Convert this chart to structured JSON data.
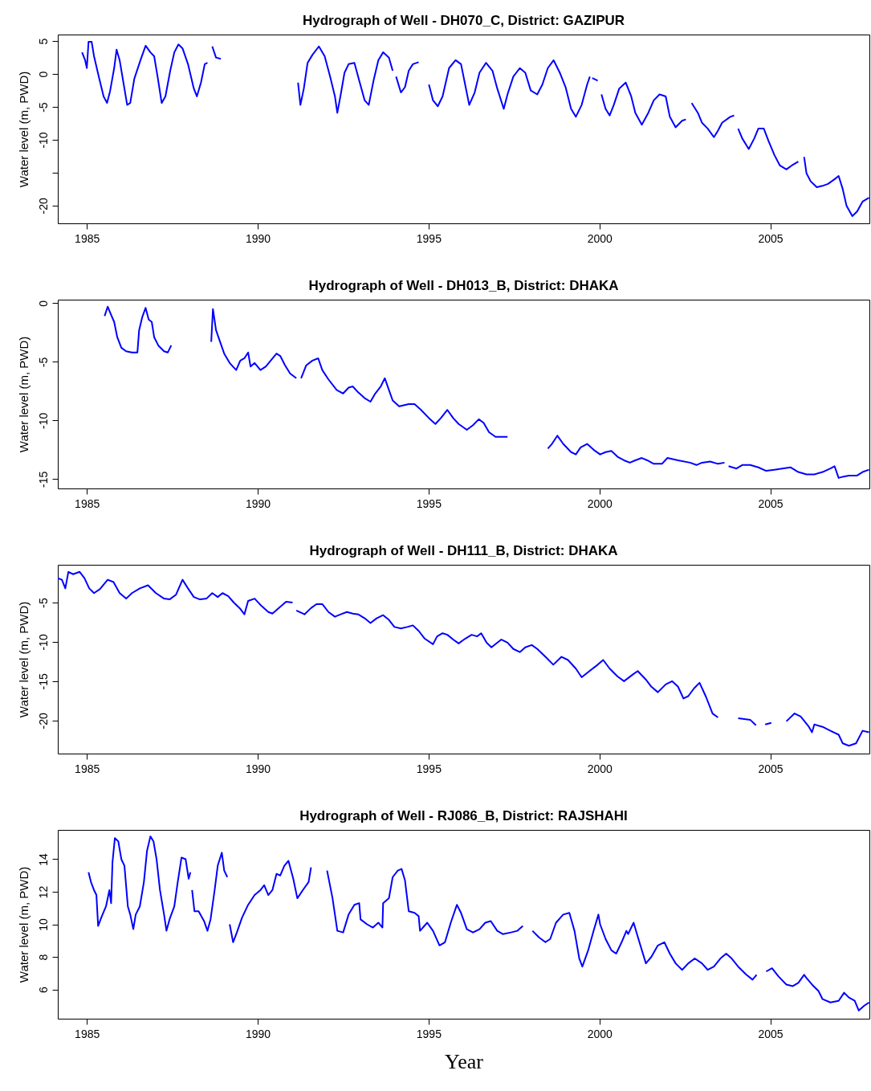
{
  "chart_data": [
    {
      "type": "line",
      "title": "Hydrograph of Well - DH070_C, District: GAZIPUR",
      "ylabel": "Water level (m, PWD)",
      "xlim": [
        1984.15,
        2007.9
      ],
      "xticks": [
        1985,
        1990,
        1995,
        2000,
        2005
      ],
      "ylim": [
        -22.7,
        6.0
      ],
      "yticks": [
        5,
        0,
        -5,
        -10,
        {
          "value": -15,
          "label": null
        },
        -20
      ],
      "x": [
        1984.86,
        1984.95,
        1985.0,
        1985.05,
        1985.14,
        1985.21,
        1985.35,
        1985.49,
        1985.59,
        1985.68,
        1985.8,
        1985.87,
        1985.96,
        1986.08,
        1986.18,
        1986.27,
        1986.39,
        1986.57,
        1986.72,
        1986.86,
        1986.97,
        1987.07,
        1987.19,
        1987.3,
        1987.44,
        1987.56,
        1987.68,
        1987.8,
        1987.96,
        1988.13,
        1988.22,
        1988.34,
        1988.45,
        1988.53,
        1988.6,
        1988.67,
        1988.78,
        1988.92,
        1990.0,
        1991.18,
        1991.25,
        1991.35,
        1991.46,
        1991.6,
        1991.79,
        1991.96,
        1992.12,
        1992.26,
        1992.33,
        1992.43,
        1992.54,
        1992.66,
        1992.83,
        1992.97,
        1993.13,
        1993.25,
        1993.39,
        1993.53,
        1993.67,
        1993.84,
        1993.95,
        1994.0,
        1994.05,
        1994.19,
        1994.31,
        1994.42,
        1994.54,
        1994.71,
        1994.86,
        1995.01,
        1995.13,
        1995.27,
        1995.41,
        1995.6,
        1995.79,
        1995.95,
        1996.07,
        1996.19,
        1996.35,
        1996.49,
        1996.68,
        1996.87,
        1997.01,
        1997.2,
        1997.31,
        1997.48,
        1997.67,
        1997.83,
        1997.99,
        1998.18,
        1998.33,
        1998.49,
        1998.66,
        1998.84,
        1999.01,
        1999.17,
        1999.31,
        1999.48,
        1999.64,
        1999.72,
        1999.75,
        1999.79,
        1999.95,
        2000.0,
        2000.06,
        2000.18,
        2000.3,
        2000.42,
        2000.58,
        2000.77,
        2000.93,
        2001.05,
        2001.24,
        2001.43,
        2001.59,
        2001.76,
        2001.94,
        2002.06,
        2002.23,
        2002.42,
        2002.53,
        2002.62,
        2002.7,
        2002.88,
        2003.0,
        2003.17,
        2003.35,
        2003.47,
        2003.59,
        2003.83,
        2003.94,
        2004.0,
        2004.06,
        2004.18,
        2004.37,
        2004.53,
        2004.65,
        2004.81,
        2004.95,
        2005.12,
        2005.28,
        2005.47,
        2005.63,
        2005.82,
        2005.9,
        2005.99,
        2006.06,
        2006.18,
        2006.36,
        2006.53,
        2006.69,
        2006.88,
        2007.0,
        2007.12,
        2007.23,
        2007.4,
        2007.54,
        2007.7,
        2007.89
      ],
      "series": [
        {
          "color": "#0000ff",
          "values": [
            3.3,
            2.1,
            0.9,
            4.9,
            4.9,
            2.7,
            -0.4,
            -3.4,
            -4.4,
            -2.6,
            0.9,
            3.7,
            2.1,
            -1.6,
            -4.7,
            -4.4,
            -0.7,
            2.1,
            4.3,
            3.3,
            2.7,
            -0.4,
            -4.4,
            -3.4,
            0.5,
            3.3,
            4.5,
            3.9,
            1.5,
            -2.2,
            -3.4,
            -1.3,
            1.5,
            1.7,
            null,
            4.2,
            2.5,
            2.3,
            null,
            -1.3,
            -4.7,
            -2.2,
            1.7,
            2.9,
            4.2,
            2.7,
            -0.4,
            -3.4,
            -5.9,
            -3.1,
            0.2,
            1.5,
            1.7,
            -1.0,
            -4.0,
            -4.7,
            -1.0,
            2.1,
            3.3,
            2.5,
            0.5,
            null,
            -0.4,
            -2.8,
            -2.0,
            0.5,
            1.5,
            1.8,
            null,
            -1.6,
            -4.0,
            -4.9,
            -3.4,
            0.9,
            2.1,
            1.5,
            -1.6,
            -4.7,
            -2.8,
            0.2,
            1.7,
            0.5,
            -2.2,
            -5.3,
            -3.1,
            -0.4,
            0.9,
            0.2,
            -2.5,
            -3.1,
            -1.6,
            0.9,
            2.1,
            0.2,
            -2.0,
            -5.3,
            -6.5,
            -4.7,
            -1.6,
            -0.4,
            null,
            -0.6,
            -1.0,
            null,
            -3.1,
            -5.3,
            -6.3,
            -4.7,
            -2.2,
            -1.3,
            -3.4,
            -5.9,
            -7.7,
            -5.9,
            -4.0,
            -3.1,
            -3.4,
            -6.5,
            -8.1,
            -7.1,
            -6.9,
            null,
            -4.4,
            -5.9,
            -7.4,
            -8.3,
            -9.6,
            -8.6,
            -7.4,
            -6.5,
            -6.3,
            null,
            -8.3,
            -9.8,
            -11.4,
            -9.8,
            -8.3,
            -8.3,
            -10.2,
            -12.3,
            -13.9,
            -14.5,
            -13.9,
            -13.3,
            null,
            -12.6,
            -15.1,
            -16.3,
            -17.2,
            -17.0,
            -16.7,
            -16.0,
            -15.5,
            -17.5,
            -20.0,
            -21.6,
            -20.9,
            -19.4,
            -18.8
          ]
        }
      ]
    },
    {
      "type": "line",
      "title": "Hydrograph of Well - DH013_B, District: DHAKA",
      "ylabel": "Water level (m, PWD)",
      "xlim": [
        1984.15,
        2007.9
      ],
      "xticks": [
        1985,
        1990,
        1995,
        2000,
        2005
      ],
      "ylim": [
        -15.8,
        0.3
      ],
      "yticks": [
        0,
        -5,
        -10,
        -15
      ],
      "x": [
        1985.52,
        1985.61,
        1985.71,
        1985.8,
        1985.89,
        1986.01,
        1986.15,
        1986.32,
        1986.48,
        1986.53,
        1986.62,
        1986.72,
        1986.81,
        1986.9,
        1986.97,
        1987.09,
        1987.26,
        1987.37,
        1987.47,
        1988.0,
        1988.64,
        1988.69,
        1988.78,
        1988.9,
        1989.02,
        1989.18,
        1989.37,
        1989.49,
        1989.61,
        1989.72,
        1989.79,
        1989.91,
        1990.08,
        1990.24,
        1990.38,
        1990.55,
        1990.66,
        1990.8,
        1990.95,
        1991.13,
        1991.2,
        1991.27,
        1991.42,
        1991.6,
        1991.77,
        1991.89,
        1992.07,
        1992.31,
        1992.5,
        1992.66,
        1992.78,
        1992.94,
        1993.13,
        1993.3,
        1993.44,
        1993.6,
        1993.72,
        1993.84,
        1993.95,
        1994.14,
        1994.42,
        1994.59,
        1994.78,
        1995.01,
        1995.2,
        1995.36,
        1995.55,
        1995.72,
        1995.88,
        1996.12,
        1996.3,
        1996.47,
        1996.61,
        1996.77,
        1996.96,
        1997.31,
        1998.0,
        1998.49,
        1998.61,
        1998.77,
        1998.94,
        1999.17,
        1999.31,
        1999.45,
        1999.64,
        1999.83,
        2000.02,
        2000.18,
        2000.35,
        2000.53,
        2000.72,
        2000.89,
        2001.05,
        2001.24,
        2001.4,
        2001.59,
        2001.83,
        2001.99,
        2002.3,
        2002.65,
        2002.84,
        2003.0,
        2003.24,
        2003.47,
        2003.66,
        2003.72,
        2003.78,
        2004.01,
        2004.18,
        2004.41,
        2004.65,
        2004.88,
        2005.12,
        2005.35,
        2005.59,
        2005.82,
        2006.06,
        2006.29,
        2006.53,
        2006.76,
        2006.88,
        2007.0,
        2007.12,
        2007.3,
        2007.54,
        2007.7,
        2007.89
      ],
      "series": [
        {
          "color": "#0000ff",
          "values": [
            -1.1,
            -0.3,
            -1.0,
            -1.6,
            -2.9,
            -3.8,
            -4.1,
            -4.2,
            -4.2,
            -2.3,
            -1.2,
            -0.4,
            -1.4,
            -1.6,
            -2.9,
            -3.6,
            -4.1,
            -4.2,
            -3.6,
            null,
            -3.3,
            -0.5,
            -2.3,
            -3.3,
            -4.3,
            -5.1,
            -5.7,
            -4.9,
            -4.7,
            -4.2,
            -5.4,
            -5.1,
            -5.7,
            -5.4,
            -4.9,
            -4.3,
            -4.5,
            -5.3,
            -6.0,
            -6.4,
            null,
            -6.4,
            -5.3,
            -4.9,
            -4.7,
            -5.7,
            -6.5,
            -7.4,
            -7.7,
            -7.2,
            -7.1,
            -7.6,
            -8.1,
            -8.4,
            -7.7,
            -7.1,
            -6.4,
            -7.4,
            -8.3,
            -8.8,
            -8.6,
            -8.6,
            -9.1,
            -9.8,
            -10.3,
            -9.8,
            -9.1,
            -9.8,
            -10.3,
            -10.8,
            -10.4,
            -9.9,
            -10.2,
            -11.0,
            -11.4,
            -11.4,
            null,
            -12.4,
            -12.0,
            -11.3,
            -12.0,
            -12.7,
            -12.9,
            -12.3,
            -12.0,
            -12.5,
            -12.9,
            -12.7,
            -12.6,
            -13.1,
            -13.4,
            -13.6,
            -13.4,
            -13.2,
            -13.4,
            -13.7,
            -13.7,
            -13.2,
            -13.4,
            -13.6,
            -13.8,
            -13.6,
            -13.5,
            -13.7,
            -13.6,
            null,
            -13.9,
            -14.1,
            -13.8,
            -13.8,
            -14.0,
            -14.3,
            -14.2,
            -14.1,
            -14.0,
            -14.4,
            -14.6,
            -14.6,
            -14.4,
            -14.1,
            -13.9,
            -14.9,
            -14.8,
            -14.7,
            -14.7,
            -14.4,
            -14.2
          ]
        }
      ]
    },
    {
      "type": "line",
      "title": "Hydrograph of Well - DH111_B, District: DHAKA",
      "ylabel": "Water level (m, PWD)",
      "xlim": [
        1984.15,
        2007.9
      ],
      "xticks": [
        1985,
        1990,
        1995,
        2000,
        2005
      ],
      "ylim": [
        -24.2,
        -0.2
      ],
      "yticks": [
        -5,
        -10,
        -15,
        -20
      ],
      "x": [
        1984.15,
        1984.27,
        1984.37,
        1984.46,
        1984.6,
        1984.79,
        1984.93,
        1985.07,
        1985.21,
        1985.38,
        1985.61,
        1985.78,
        1985.96,
        1986.15,
        1986.32,
        1986.55,
        1986.79,
        1987.02,
        1987.26,
        1987.42,
        1987.61,
        1987.8,
        1987.96,
        1988.13,
        1988.31,
        1988.5,
        1988.67,
        1988.83,
        1988.97,
        1989.14,
        1989.3,
        1989.49,
        1989.61,
        1989.72,
        1989.91,
        1990.08,
        1990.31,
        1990.43,
        1990.62,
        1990.83,
        1991.02,
        1991.08,
        1991.13,
        1991.37,
        1991.56,
        1991.72,
        1991.89,
        1992.07,
        1992.26,
        1992.43,
        1992.61,
        1992.78,
        1992.94,
        1993.13,
        1993.3,
        1993.48,
        1993.67,
        1993.84,
        1994.0,
        1994.19,
        1994.38,
        1994.54,
        1994.71,
        1994.89,
        1995.13,
        1995.25,
        1995.41,
        1995.55,
        1995.72,
        1995.88,
        1996.07,
        1996.26,
        1996.42,
        1996.54,
        1996.7,
        1996.84,
        1997.01,
        1997.13,
        1997.31,
        1997.48,
        1997.67,
        1997.83,
        1998.02,
        1998.18,
        1998.42,
        1998.65,
        1998.89,
        1999.08,
        1999.31,
        1999.48,
        1999.71,
        1999.95,
        2000.11,
        2000.3,
        2000.53,
        2000.72,
        2000.96,
        2001.12,
        2001.36,
        2001.52,
        2001.71,
        2001.94,
        2002.13,
        2002.3,
        2002.46,
        2002.6,
        2002.77,
        2002.93,
        2003.12,
        2003.31,
        2003.47,
        2003.8,
        2004.06,
        2004.41,
        2004.58,
        2004.72,
        2004.85,
        2005.03,
        2005.2,
        2005.47,
        2005.71,
        2005.89,
        2006.13,
        2006.22,
        2006.29,
        2006.53,
        2006.76,
        2007.0,
        2007.12,
        2007.3,
        2007.51,
        2007.7,
        2007.89
      ],
      "series": [
        {
          "color": "#0000ff",
          "values": [
            -1.9,
            -2.1,
            -3.2,
            -1.1,
            -1.4,
            -1.1,
            -1.9,
            -3.2,
            -3.8,
            -3.3,
            -2.1,
            -2.4,
            -3.8,
            -4.5,
            -3.8,
            -3.2,
            -2.8,
            -3.8,
            -4.5,
            -4.6,
            -4.0,
            -2.1,
            -3.2,
            -4.3,
            -4.6,
            -4.5,
            -3.8,
            -4.3,
            -3.8,
            -4.2,
            -5.0,
            -5.8,
            -6.5,
            -4.8,
            -4.5,
            -5.3,
            -6.2,
            -6.4,
            -5.7,
            -4.9,
            -5.0,
            null,
            -6.0,
            -6.5,
            -5.7,
            -5.2,
            -5.2,
            -6.2,
            -6.8,
            -6.5,
            -6.2,
            -6.4,
            -6.5,
            -7.0,
            -7.6,
            -7.0,
            -6.6,
            -7.2,
            -8.1,
            -8.3,
            -8.1,
            -7.9,
            -8.6,
            -9.6,
            -10.3,
            -9.3,
            -8.9,
            -9.1,
            -9.7,
            -10.2,
            -9.6,
            -9.1,
            -9.3,
            -8.9,
            -10.1,
            -10.7,
            -10.1,
            -9.7,
            -10.1,
            -10.9,
            -11.3,
            -10.7,
            -10.4,
            -10.9,
            -11.9,
            -12.9,
            -11.9,
            -12.3,
            -13.4,
            -14.5,
            -13.7,
            -12.9,
            -12.3,
            -13.4,
            -14.4,
            -15.0,
            -14.2,
            -13.7,
            -14.8,
            -15.7,
            -16.4,
            -15.4,
            -15.0,
            -15.7,
            -17.2,
            -16.9,
            -15.9,
            -15.2,
            -17.0,
            -19.1,
            -19.6,
            null,
            -19.7,
            -19.9,
            -20.6,
            null,
            -20.5,
            -20.3,
            null,
            -20.1,
            -19.1,
            -19.5,
            -20.8,
            -21.5,
            -20.5,
            -20.8,
            -21.3,
            -21.8,
            -22.9,
            -23.2,
            -22.9,
            -21.3,
            -21.5
          ]
        }
      ]
    },
    {
      "type": "line",
      "title": "Hydrograph of Well - RJ086_B, District: RAJSHAHI",
      "ylabel": "Water level (m, PWD)",
      "xlabel": "Year",
      "xlim": [
        1984.15,
        2007.9
      ],
      "xticks": [
        1985,
        1990,
        1995,
        2000,
        2005
      ],
      "ylim": [
        4.2,
        15.8
      ],
      "yticks": [
        6,
        8,
        10,
        12,
        14
      ],
      "x": [
        1985.05,
        1985.12,
        1985.21,
        1985.28,
        1985.33,
        1985.42,
        1985.56,
        1985.66,
        1985.71,
        1985.75,
        1985.82,
        1985.92,
        1986.01,
        1986.1,
        1986.2,
        1986.27,
        1986.36,
        1986.43,
        1986.55,
        1986.67,
        1986.76,
        1986.86,
        1986.95,
        1987.04,
        1987.14,
        1987.26,
        1987.33,
        1987.42,
        1987.56,
        1987.66,
        1987.77,
        1987.89,
        1987.98,
        1988.03,
        1988.05,
        1988.08,
        1988.15,
        1988.27,
        1988.43,
        1988.53,
        1988.62,
        1988.74,
        1988.83,
        1988.95,
        1989.02,
        1989.11,
        1989.15,
        1989.18,
        1989.28,
        1989.39,
        1989.54,
        1989.72,
        1989.91,
        1990.08,
        1990.19,
        1990.31,
        1990.43,
        1990.55,
        1990.66,
        1990.78,
        1990.9,
        1991.04,
        1991.16,
        1991.32,
        1991.49,
        1991.56,
        1991.8,
        1992.03,
        1992.19,
        1992.33,
        1992.5,
        1992.66,
        1992.83,
        1992.97,
        1993.01,
        1993.2,
        1993.37,
        1993.53,
        1993.65,
        1993.67,
        1993.84,
        1993.95,
        1994.1,
        1994.21,
        1994.31,
        1994.42,
        1994.59,
        1994.71,
        1994.75,
        1994.96,
        1995.13,
        1995.32,
        1995.48,
        1995.65,
        1995.83,
        1995.95,
        1996.12,
        1996.3,
        1996.49,
        1996.66,
        1996.82,
        1997.01,
        1997.17,
        1997.41,
        1997.6,
        1997.76,
        1997.9,
        1998.04,
        1998.23,
        1998.42,
        1998.56,
        1998.73,
        1998.94,
        1999.12,
        1999.27,
        1999.41,
        1999.5,
        1999.67,
        1999.83,
        1999.97,
        2000.02,
        2000.18,
        2000.35,
        2000.49,
        2000.65,
        2000.79,
        2000.84,
        2001.0,
        2001.17,
        2001.36,
        2001.52,
        2001.71,
        2001.9,
        2002.06,
        2002.23,
        2002.42,
        2002.6,
        2002.79,
        2003.0,
        2003.17,
        2003.35,
        2003.54,
        2003.71,
        2003.87,
        2004.06,
        2004.3,
        2004.48,
        2004.6,
        2004.75,
        2004.88,
        2005.05,
        2005.24,
        2005.47,
        2005.66,
        2005.82,
        2005.99,
        2006.06,
        2006.22,
        2006.41,
        2006.53,
        2006.76,
        2007.0,
        2007.16,
        2007.3,
        2007.47,
        2007.59,
        2007.75,
        2007.89
      ],
      "series": [
        {
          "color": "#0000ff",
          "values": [
            13.2,
            12.6,
            12.1,
            11.8,
            9.9,
            10.4,
            11.1,
            12.1,
            11.3,
            13.8,
            15.3,
            15.1,
            14.0,
            13.6,
            11.1,
            10.6,
            9.7,
            10.6,
            11.1,
            12.6,
            14.5,
            15.4,
            15.1,
            14.0,
            12.1,
            10.6,
            9.6,
            10.3,
            11.1,
            12.6,
            14.1,
            14.0,
            12.8,
            13.2,
            null,
            12.1,
            10.8,
            10.8,
            10.2,
            9.6,
            10.3,
            12.1,
            13.6,
            14.4,
            13.3,
            12.9,
            null,
            10.0,
            8.9,
            9.5,
            10.4,
            11.2,
            11.8,
            12.1,
            12.4,
            11.8,
            12.1,
            13.1,
            13.0,
            13.6,
            13.9,
            12.8,
            11.6,
            12.1,
            12.6,
            13.5,
            null,
            13.3,
            11.6,
            9.6,
            9.5,
            10.6,
            11.2,
            11.3,
            10.3,
            10.0,
            9.8,
            10.1,
            9.8,
            11.3,
            11.6,
            12.9,
            13.3,
            13.4,
            12.7,
            10.8,
            10.7,
            10.5,
            9.6,
            10.1,
            9.6,
            8.7,
            8.9,
            10.1,
            11.2,
            10.7,
            9.7,
            9.5,
            9.7,
            10.1,
            10.2,
            9.6,
            9.4,
            9.5,
            9.6,
            9.9,
            null,
            9.6,
            9.2,
            8.9,
            9.1,
            10.1,
            10.6,
            10.7,
            9.6,
            7.9,
            7.4,
            8.4,
            9.6,
            10.6,
            10.0,
            9.1,
            8.4,
            8.2,
            8.9,
            9.6,
            9.4,
            10.1,
            8.9,
            7.6,
            8.0,
            8.7,
            8.9,
            8.2,
            7.6,
            7.2,
            7.6,
            7.9,
            7.6,
            7.2,
            7.4,
            7.9,
            8.2,
            7.9,
            7.4,
            6.9,
            6.6,
            6.9,
            null,
            7.1,
            7.3,
            6.8,
            6.3,
            6.2,
            6.4,
            6.9,
            6.7,
            6.3,
            5.9,
            5.4,
            5.2,
            5.3,
            5.8,
            5.5,
            5.3,
            4.7,
            5.0,
            5.2
          ]
        }
      ]
    }
  ]
}
